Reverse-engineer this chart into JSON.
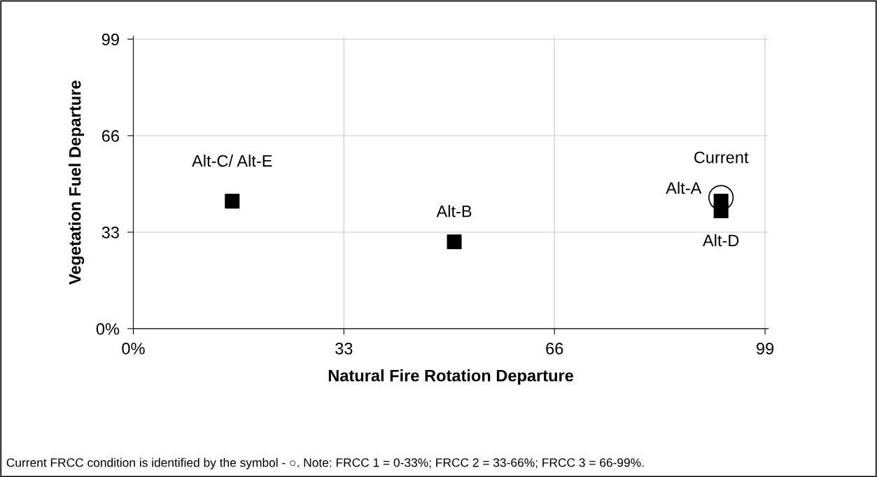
{
  "chart_data": {
    "type": "scatter",
    "xlabel": "Natural Fire Rotation Departure",
    "ylabel": "Vegetation Fuel Departure",
    "series": [
      {
        "marker": "square",
        "color": "#000000",
        "x": [
          15.5,
          50.3,
          92.1,
          92.1
        ],
        "values": [
          43.6,
          29.7,
          43.6,
          40.3
        ]
      },
      {
        "marker": "circle",
        "color": "#000000",
        "x": [
          92.1
        ],
        "values": [
          44.8
        ]
      }
    ],
    "xlim": [
      0,
      99.5
    ],
    "ylim": [
      0,
      100
    ],
    "xticks": [
      {
        "value": 0,
        "label": "0%"
      },
      33,
      66,
      99
    ],
    "yticks": [
      {
        "value": 0,
        "label": "0%"
      },
      33,
      66,
      99
    ],
    "grid": true,
    "legend": false,
    "annotations": [
      {
        "text": "Alt-C/ Alt-E",
        "x": 15.5,
        "y": 43.6
      },
      {
        "text": "Alt-B",
        "x": 50.3,
        "y": 29.7
      },
      {
        "text": "Alt-A",
        "x": 92.1,
        "y": 43.6
      },
      {
        "text": "Alt-D",
        "x": 92.1,
        "y": 40.3
      },
      {
        "text": "Current",
        "x": 92.1,
        "y": 44.8
      },
      "Current FRCC condition is identified by the symbol - ○. Note: FRCC 1 = 0-33%; FRCC 2 = 33-66%; FRCC 3 = 66-99%."
    ]
  }
}
